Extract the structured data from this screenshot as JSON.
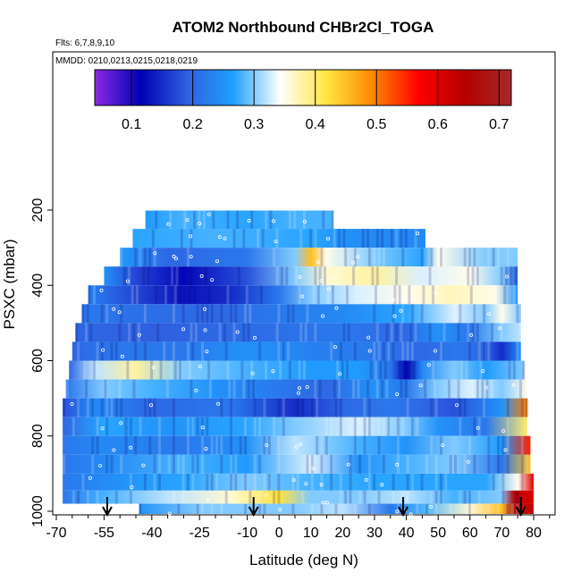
{
  "chart_data": {
    "type": "heatmap",
    "title": "ATOM2 Northbound CHBr2Cl_TOGA",
    "flights_label": "Flts: 6,7,8,9,10",
    "mmdd_label": "MMDD: 0210,0213,0215,0218,0219",
    "xlabel": "Latitude (deg N)",
    "ylabel": "PSXC (mbar)",
    "xlim": [
      -70,
      85
    ],
    "ylim": [
      1000,
      150
    ],
    "x_ticks": [
      -70,
      -55,
      -40,
      -25,
      -10,
      0,
      10,
      20,
      30,
      40,
      50,
      60,
      70,
      80
    ],
    "y_ticks": [
      200,
      400,
      600,
      800,
      1000
    ],
    "colorbar": {
      "range": [
        0.04,
        0.72
      ],
      "ticks": [
        0.1,
        0.2,
        0.3,
        0.4,
        0.5,
        0.6,
        0.7
      ],
      "tick_labels": [
        "0.1",
        "0.2",
        "0.3",
        "0.4",
        "0.5",
        "0.6",
        "0.7"
      ],
      "colors": [
        "#8a2be2",
        "#0000b4",
        "#3060e0",
        "#1fa0ff",
        "#ffffff",
        "#ffe640",
        "#ff8800",
        "#ff0000",
        "#b40000",
        "#a52a2a"
      ]
    },
    "flight_arrows_lat": [
      -54,
      -8,
      39,
      76
    ],
    "rows": [
      {
        "p": 225,
        "x0": -42,
        "x1": 17,
        "segs": [
          [
            -42,
            0.26
          ],
          [
            -30,
            0.28
          ],
          [
            -10,
            0.27
          ],
          [
            5,
            0.28
          ],
          [
            17,
            0.28
          ]
        ]
      },
      {
        "p": 275,
        "x0": -46,
        "x1": 46,
        "segs": [
          [
            -46,
            0.27
          ],
          [
            -20,
            0.28
          ],
          [
            10,
            0.27
          ],
          [
            20,
            0.25
          ],
          [
            30,
            0.24
          ],
          [
            46,
            0.24
          ]
        ]
      },
      {
        "p": 325,
        "x0": -50,
        "x1": 75,
        "segs": [
          [
            -50,
            0.26
          ],
          [
            -35,
            0.2
          ],
          [
            -10,
            0.22
          ],
          [
            5,
            0.3
          ],
          [
            10,
            0.45
          ],
          [
            15,
            0.35
          ],
          [
            30,
            0.3
          ],
          [
            45,
            0.27
          ],
          [
            50,
            0.35
          ],
          [
            65,
            0.3
          ],
          [
            75,
            0.3
          ]
        ]
      },
      {
        "p": 375,
        "x0": -55,
        "x1": 75,
        "segs": [
          [
            -55,
            0.25
          ],
          [
            -45,
            0.17
          ],
          [
            -30,
            0.12
          ],
          [
            -10,
            0.18
          ],
          [
            5,
            0.3
          ],
          [
            15,
            0.36
          ],
          [
            30,
            0.38
          ],
          [
            45,
            0.33
          ],
          [
            60,
            0.35
          ],
          [
            70,
            0.3
          ],
          [
            75,
            0.2
          ]
        ]
      },
      {
        "p": 425,
        "x0": -60,
        "x1": 75,
        "segs": [
          [
            -60,
            0.23
          ],
          [
            -45,
            0.17
          ],
          [
            -30,
            0.13
          ],
          [
            -15,
            0.15
          ],
          [
            0,
            0.22
          ],
          [
            10,
            0.3
          ],
          [
            25,
            0.33
          ],
          [
            40,
            0.35
          ],
          [
            55,
            0.37
          ],
          [
            68,
            0.35
          ],
          [
            75,
            0.25
          ]
        ]
      },
      {
        "p": 475,
        "x0": -62,
        "x1": 76,
        "segs": [
          [
            -62,
            0.22
          ],
          [
            -45,
            0.21
          ],
          [
            -20,
            0.2
          ],
          [
            0,
            0.22
          ],
          [
            20,
            0.24
          ],
          [
            40,
            0.27
          ],
          [
            55,
            0.33
          ],
          [
            65,
            0.3
          ],
          [
            70,
            0.35
          ],
          [
            76,
            0.3
          ]
        ]
      },
      {
        "p": 525,
        "x0": -64,
        "x1": 76,
        "segs": [
          [
            -64,
            0.2
          ],
          [
            -40,
            0.19
          ],
          [
            -20,
            0.2
          ],
          [
            0,
            0.21
          ],
          [
            20,
            0.22
          ],
          [
            40,
            0.2
          ],
          [
            50,
            0.25
          ],
          [
            60,
            0.22
          ],
          [
            70,
            0.3
          ],
          [
            76,
            0.32
          ]
        ]
      },
      {
        "p": 575,
        "x0": -65,
        "x1": 76,
        "segs": [
          [
            -65,
            0.2
          ],
          [
            -50,
            0.22
          ],
          [
            -30,
            0.22
          ],
          [
            -10,
            0.25
          ],
          [
            10,
            0.23
          ],
          [
            30,
            0.22
          ],
          [
            45,
            0.2
          ],
          [
            55,
            0.22
          ],
          [
            65,
            0.2
          ],
          [
            70,
            0.15
          ],
          [
            76,
            0.25
          ]
        ]
      },
      {
        "p": 625,
        "x0": -66,
        "x1": 77,
        "segs": [
          [
            -66,
            0.2
          ],
          [
            -58,
            0.32
          ],
          [
            -45,
            0.38
          ],
          [
            -30,
            0.3
          ],
          [
            -10,
            0.28
          ],
          [
            10,
            0.26
          ],
          [
            25,
            0.26
          ],
          [
            35,
            0.22
          ],
          [
            40,
            0.12
          ],
          [
            45,
            0.24
          ],
          [
            55,
            0.3
          ],
          [
            65,
            0.26
          ],
          [
            77,
            0.3
          ]
        ]
      },
      {
        "p": 675,
        "x0": -67,
        "x1": 78,
        "segs": [
          [
            -67,
            0.22
          ],
          [
            -55,
            0.3
          ],
          [
            -40,
            0.28
          ],
          [
            -20,
            0.25
          ],
          [
            0,
            0.22
          ],
          [
            15,
            0.2
          ],
          [
            30,
            0.25
          ],
          [
            40,
            0.22
          ],
          [
            50,
            0.3
          ],
          [
            60,
            0.33
          ],
          [
            70,
            0.3
          ],
          [
            78,
            0.35
          ]
        ]
      },
      {
        "p": 725,
        "x0": -68,
        "x1": 78,
        "segs": [
          [
            -68,
            0.18
          ],
          [
            -58,
            0.24
          ],
          [
            -40,
            0.2
          ],
          [
            -15,
            0.22
          ],
          [
            5,
            0.15
          ],
          [
            20,
            0.2
          ],
          [
            35,
            0.22
          ],
          [
            45,
            0.2
          ],
          [
            55,
            0.18
          ],
          [
            70,
            0.25
          ],
          [
            78,
            0.5
          ]
        ]
      },
      {
        "p": 775,
        "x0": -68,
        "x1": 78,
        "segs": [
          [
            -68,
            0.2
          ],
          [
            -55,
            0.27
          ],
          [
            -35,
            0.25
          ],
          [
            -10,
            0.27
          ],
          [
            5,
            0.3
          ],
          [
            25,
            0.33
          ],
          [
            40,
            0.3
          ],
          [
            50,
            0.25
          ],
          [
            65,
            0.22
          ],
          [
            78,
            0.4
          ]
        ]
      },
      {
        "p": 825,
        "x0": -68,
        "x1": 79,
        "segs": [
          [
            -68,
            0.22
          ],
          [
            -55,
            0.24
          ],
          [
            -30,
            0.22
          ],
          [
            -10,
            0.25
          ],
          [
            5,
            0.32
          ],
          [
            25,
            0.28
          ],
          [
            40,
            0.25
          ],
          [
            55,
            0.3
          ],
          [
            70,
            0.26
          ],
          [
            79,
            0.55
          ]
        ]
      },
      {
        "p": 875,
        "x0": -68,
        "x1": 79,
        "segs": [
          [
            -68,
            0.22
          ],
          [
            -55,
            0.24
          ],
          [
            -30,
            0.28
          ],
          [
            -10,
            0.26
          ],
          [
            10,
            0.33
          ],
          [
            25,
            0.25
          ],
          [
            40,
            0.28
          ],
          [
            55,
            0.3
          ],
          [
            70,
            0.22
          ],
          [
            79,
            0.45
          ]
        ]
      },
      {
        "p": 925,
        "x0": -68,
        "x1": 80,
        "segs": [
          [
            -68,
            0.22
          ],
          [
            -50,
            0.25
          ],
          [
            -30,
            0.27
          ],
          [
            -10,
            0.3
          ],
          [
            10,
            0.28
          ],
          [
            30,
            0.27
          ],
          [
            50,
            0.27
          ],
          [
            65,
            0.27
          ],
          [
            75,
            0.35
          ],
          [
            80,
            0.6
          ]
        ]
      },
      {
        "p": 965,
        "x0": -68,
        "x1": 80,
        "segs": [
          [
            -68,
            0.22
          ],
          [
            -55,
            0.28
          ],
          [
            -35,
            0.32
          ],
          [
            -15,
            0.36
          ],
          [
            0,
            0.42
          ],
          [
            10,
            0.3
          ],
          [
            25,
            0.3
          ],
          [
            40,
            0.32
          ],
          [
            55,
            0.28
          ],
          [
            70,
            0.3
          ],
          [
            74,
            0.65
          ],
          [
            80,
            0.6
          ]
        ]
      },
      {
        "p": 995,
        "x0": -44,
        "x1": 80,
        "segs": [
          [
            -44,
            0.25
          ],
          [
            -25,
            0.3
          ],
          [
            -10,
            0.3
          ],
          [
            5,
            0.3
          ],
          [
            20,
            0.32
          ],
          [
            35,
            0.22
          ],
          [
            45,
            0.28
          ],
          [
            60,
            0.36
          ],
          [
            70,
            0.45
          ],
          [
            74,
            0.68
          ],
          [
            80,
            0.62
          ]
        ]
      }
    ]
  }
}
